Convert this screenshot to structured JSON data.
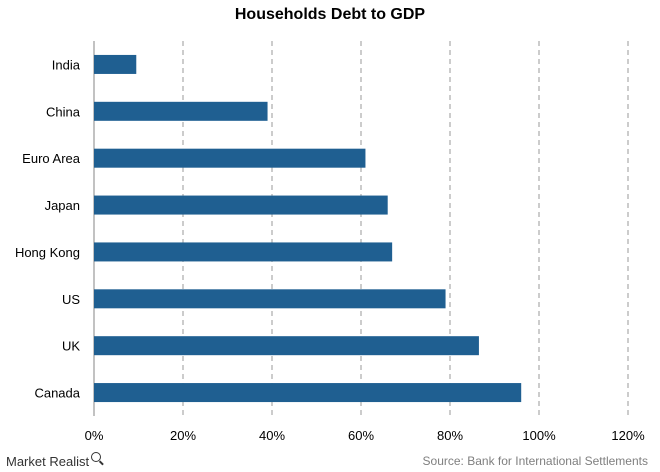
{
  "chart_data": {
    "type": "bar",
    "orientation": "horizontal",
    "title": "Households Debt to GDP",
    "categories": [
      "India",
      "China",
      "Euro Area",
      "Japan",
      "Hong Kong",
      "US",
      "UK",
      "Canada"
    ],
    "values": [
      9.5,
      39,
      61,
      66,
      67,
      79,
      86.5,
      96
    ],
    "unit": "%",
    "xlim": [
      0,
      120
    ],
    "xticks": [
      0,
      20,
      40,
      60,
      80,
      100,
      120
    ],
    "tick_labels": [
      "0%",
      "20%",
      "40%",
      "60%",
      "80%",
      "100%",
      "120%"
    ],
    "grid": "vertical-dashed",
    "bar_color": "#1f5f91",
    "xlabel": "",
    "ylabel": ""
  },
  "footer": {
    "brand": "Market Realist",
    "source": "Source: Bank for International Settlements"
  }
}
